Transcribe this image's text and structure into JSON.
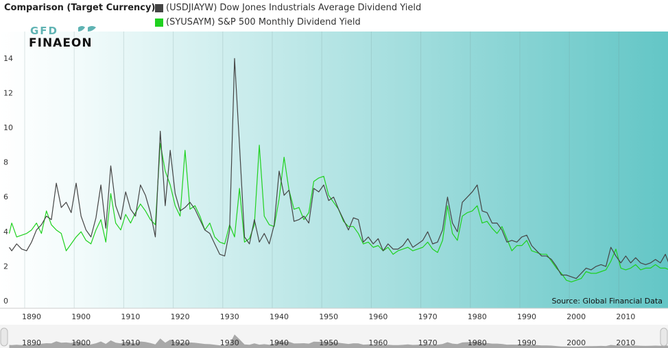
{
  "header": {
    "title": "Comparison (Target Currency)"
  },
  "legend": [
    {
      "label": "(USDJIAYW) Dow Jones Industrials Average Dividend Yield",
      "color": "#444444"
    },
    {
      "label": "(SYUSAYM) S&P 500 Monthly Dividend Yield",
      "color": "#1fd11f"
    }
  ],
  "logo": {
    "line1": "GFD",
    "line2": "FINAEON"
  },
  "source": "Source: Global Financial Data",
  "navigator_labels": [
    "1890",
    "1900",
    "1910",
    "1920",
    "1930",
    "1940",
    "1950",
    "1960",
    "1970",
    "1980",
    "1990",
    "2000",
    "2010"
  ],
  "colors": {
    "gradient_start": "#ffffff",
    "gradient_end": "#63c6c6",
    "dow": "#444444",
    "sp500": "#1fd11f"
  },
  "chart_data": {
    "type": "line",
    "title": "",
    "xlabel": "",
    "ylabel": "",
    "xlim": [
      1885,
      2019
    ],
    "ylim": [
      0,
      16
    ],
    "yticks": [
      0,
      2,
      4,
      6,
      8,
      10,
      12,
      14
    ],
    "xticks": [
      1890,
      1900,
      1910,
      1920,
      1930,
      1940,
      1950,
      1960,
      1970,
      1980,
      1990,
      2000,
      2010
    ],
    "grid": "vertical",
    "legend_position": "top",
    "series": [
      {
        "name": "(USDJIAYW) Dow Jones Industrials Average Dividend Yield",
        "color": "#444444",
        "x": [
          1885.5,
          1886,
          1887,
          1888,
          1889,
          1890,
          1891,
          1892,
          1893,
          1894,
          1895,
          1896,
          1897,
          1898,
          1899,
          1900,
          1901,
          1902,
          1903,
          1904,
          1905,
          1906,
          1907,
          1908,
          1909,
          1910,
          1911,
          1912,
          1913,
          1914,
          1915,
          1916,
          1917,
          1918,
          1919,
          1920,
          1921,
          1922,
          1923,
          1924,
          1925,
          1926,
          1927,
          1928,
          1929,
          1930,
          1931,
          1932,
          1933,
          1934,
          1935,
          1936,
          1937,
          1938,
          1939,
          1940,
          1941,
          1942,
          1943,
          1944,
          1945,
          1946,
          1947,
          1948,
          1949,
          1950,
          1951,
          1952,
          1953,
          1954,
          1955,
          1956,
          1957,
          1958,
          1959,
          1960,
          1961,
          1962,
          1963,
          1964,
          1965,
          1966,
          1967,
          1968,
          1969,
          1970,
          1971,
          1972,
          1973,
          1974,
          1975,
          1976,
          1977,
          1978,
          1979,
          1980,
          1981,
          1982,
          1983,
          1984,
          1985,
          1986,
          1987,
          1988,
          1989,
          1990,
          1991,
          1992,
          1993,
          1994,
          1995,
          1996,
          1997,
          1998,
          1999,
          2000,
          2001,
          2002,
          2003,
          2004,
          2005,
          2006,
          2007,
          2008,
          2009,
          2010,
          2011,
          2012,
          2013,
          2014,
          2015,
          2016,
          2017,
          2018,
          2018.8
        ],
        "values": [
          3.2,
          3.0,
          3.4,
          3.1,
          3.0,
          3.5,
          4.2,
          4.5,
          5.0,
          4.8,
          6.9,
          5.5,
          5.8,
          5.2,
          6.9,
          5.0,
          4.2,
          3.8,
          4.9,
          6.8,
          4.3,
          7.9,
          5.6,
          4.8,
          6.4,
          5.4,
          5.0,
          6.8,
          6.2,
          5.2,
          3.8,
          9.9,
          5.6,
          8.8,
          6.3,
          5.3,
          5.5,
          5.8,
          5.4,
          4.8,
          4.2,
          4.0,
          3.4,
          2.8,
          2.7,
          4.2,
          14.1,
          9.1,
          3.8,
          3.4,
          4.8,
          3.5,
          4.0,
          3.4,
          4.5,
          7.6,
          6.2,
          6.5,
          4.7,
          4.8,
          5.0,
          4.6,
          6.6,
          6.4,
          6.8,
          5.9,
          6.1,
          5.4,
          4.8,
          4.2,
          4.9,
          4.8,
          3.5,
          3.8,
          3.4,
          3.7,
          3.0,
          3.4,
          3.1,
          3.1,
          3.3,
          3.7,
          3.2,
          3.4,
          3.6,
          4.1,
          3.4,
          3.5,
          4.2,
          6.1,
          4.6,
          4.1,
          5.8,
          6.1,
          6.4,
          6.8,
          5.3,
          5.2,
          4.6,
          4.6,
          4.2,
          3.5,
          3.6,
          3.5,
          3.8,
          3.9,
          3.3,
          3.0,
          2.7,
          2.7,
          2.5,
          2.1,
          1.6,
          1.6,
          1.5,
          1.4,
          1.7,
          2.0,
          1.9,
          2.1,
          2.2,
          2.1,
          3.2,
          2.7,
          2.3,
          2.7,
          2.3,
          2.6,
          2.3,
          2.2,
          2.3,
          2.5,
          2.3,
          2.8,
          2.2
        ]
      },
      {
        "name": "(SYUSAYM) S&P 500 Monthly Dividend Yield",
        "color": "#1fd11f",
        "x": [
          1885.5,
          1886,
          1887,
          1888,
          1889,
          1890,
          1891,
          1892,
          1893,
          1894,
          1895,
          1896,
          1897,
          1898,
          1899,
          1900,
          1901,
          1902,
          1903,
          1904,
          1905,
          1906,
          1907,
          1908,
          1909,
          1910,
          1911,
          1912,
          1913,
          1914,
          1915,
          1916,
          1917,
          1918,
          1919,
          1920,
          1921,
          1922,
          1923,
          1924,
          1925,
          1926,
          1927,
          1928,
          1929,
          1930,
          1931,
          1932,
          1933,
          1934,
          1935,
          1936,
          1937,
          1938,
          1939,
          1940,
          1941,
          1942,
          1943,
          1944,
          1945,
          1946,
          1947,
          1948,
          1949,
          1950,
          1951,
          1952,
          1953,
          1954,
          1955,
          1956,
          1957,
          1958,
          1959,
          1960,
          1961,
          1962,
          1963,
          1964,
          1965,
          1966,
          1967,
          1968,
          1969,
          1970,
          1971,
          1972,
          1973,
          1974,
          1975,
          1976,
          1977,
          1978,
          1979,
          1980,
          1981,
          1982,
          1983,
          1984,
          1985,
          1986,
          1987,
          1988,
          1989,
          1990,
          1991,
          1992,
          1993,
          1994,
          1995,
          1996,
          1997,
          1998,
          1999,
          2000,
          2001,
          2002,
          2003,
          2004,
          2005,
          2006,
          2007,
          2008,
          2009,
          2010,
          2011,
          2012,
          2013,
          2014,
          2015,
          2016,
          2017,
          2018,
          2018.8
        ],
        "values": [
          4.0,
          4.6,
          3.8,
          3.9,
          4.0,
          4.2,
          4.6,
          4.0,
          5.3,
          4.5,
          4.2,
          4.0,
          3.0,
          3.4,
          3.8,
          4.1,
          3.6,
          3.4,
          4.2,
          4.8,
          3.5,
          6.3,
          4.6,
          4.2,
          5.1,
          4.6,
          5.2,
          5.7,
          5.3,
          4.8,
          4.5,
          9.2,
          7.6,
          6.8,
          5.6,
          5.0,
          8.8,
          5.4,
          5.6,
          5.0,
          4.2,
          4.6,
          3.8,
          3.5,
          3.4,
          4.5,
          3.8,
          6.6,
          3.5,
          3.7,
          4.5,
          9.1,
          5.0,
          4.5,
          4.4,
          6.0,
          8.4,
          6.5,
          5.4,
          5.5,
          4.8,
          5.2,
          7.0,
          7.2,
          7.3,
          6.2,
          5.8,
          5.4,
          4.7,
          4.4,
          4.4,
          4.0,
          3.4,
          3.5,
          3.2,
          3.3,
          3.0,
          3.2,
          2.8,
          3.0,
          3.1,
          3.2,
          3.0,
          3.1,
          3.2,
          3.5,
          3.1,
          2.9,
          3.6,
          5.6,
          4.0,
          3.6,
          5.0,
          5.2,
          5.3,
          5.6,
          4.6,
          4.7,
          4.3,
          4.0,
          4.4,
          3.7,
          3.0,
          3.3,
          3.3,
          3.6,
          3.0,
          2.9,
          2.8,
          2.8,
          2.4,
          2.0,
          1.7,
          1.3,
          1.2,
          1.3,
          1.4,
          1.8,
          1.7,
          1.7,
          1.8,
          1.9,
          2.4,
          3.1,
          2.0,
          1.9,
          2.0,
          2.2,
          1.9,
          2.0,
          2.0,
          2.2,
          2.0,
          2.0,
          1.9
        ]
      }
    ]
  }
}
